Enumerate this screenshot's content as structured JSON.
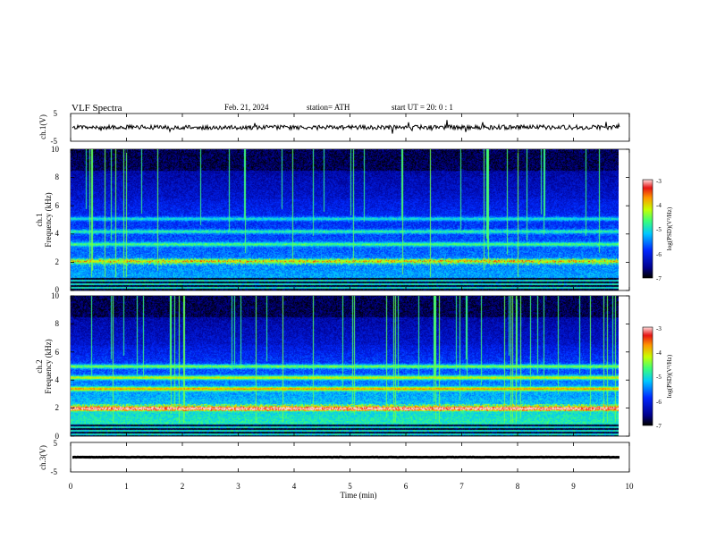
{
  "header": {
    "title": "VLF  Spectra",
    "date": "Feb. 21, 2024",
    "station": "station= ATH",
    "start": "start  UT  =    20: 0   : 1"
  },
  "chart_data": [
    {
      "type": "line",
      "name": "ch1-waveform",
      "ylabel": "ch.1(V)",
      "ylim": [
        -5,
        5
      ],
      "yticks": [
        "5",
        "-5"
      ],
      "xlim": [
        0,
        10
      ],
      "duration_min": 9.83,
      "baseline_v": 0.0,
      "noise_amplitude_v": 0.8
    },
    {
      "type": "heatmap",
      "name": "ch1-spectrogram",
      "ylabel": "ch.1\nFrequency  (kHz)",
      "ylim": [
        0,
        10
      ],
      "yticks": [
        "0",
        "2",
        "4",
        "6",
        "8",
        "10"
      ],
      "xlim": [
        0,
        10
      ],
      "duration_min": 9.83,
      "colorbar": {
        "label": "log(PSD)(V²/Hz)",
        "range": [
          -7,
          -3
        ],
        "ticks": [
          "-3",
          "-4",
          "-5",
          "-6",
          "-7"
        ]
      },
      "spectral_bands": [
        {
          "freq_khz": 2.1,
          "level": 0.55
        },
        {
          "freq_khz": 3.3,
          "level": 0.42
        },
        {
          "freq_khz": 4.2,
          "level": 0.4
        },
        {
          "freq_khz": 5.1,
          "level": 0.38
        }
      ]
    },
    {
      "type": "heatmap",
      "name": "ch2-spectrogram",
      "ylabel": "ch.2\nFrequency  (kHz)",
      "ylim": [
        0,
        10
      ],
      "yticks": [
        "0",
        "2",
        "4",
        "6",
        "8",
        "10"
      ],
      "xlim": [
        0,
        10
      ],
      "duration_min": 9.83,
      "colorbar": {
        "label": "log(PSD)(V²/Hz)",
        "range": [
          -7,
          -3
        ],
        "ticks": [
          "-3",
          "-4",
          "-5",
          "-6",
          "-7"
        ]
      },
      "spectral_bands": [
        {
          "freq_khz": 2.0,
          "level": 0.85
        },
        {
          "freq_khz": 3.4,
          "level": 0.7
        },
        {
          "freq_khz": 4.2,
          "level": 0.62
        },
        {
          "freq_khz": 5.0,
          "level": 0.55
        }
      ]
    },
    {
      "type": "line",
      "name": "ch3-waveform",
      "ylabel": "ch.3(V)",
      "ylim": [
        -5,
        5
      ],
      "yticks": [
        "5",
        "-5"
      ],
      "xlim": [
        0,
        10
      ],
      "duration_min": 9.83,
      "baseline_v": 0.0,
      "noise_amplitude_v": 0.05
    }
  ],
  "xaxis": {
    "label": "Time  (min)",
    "ticks": [
      "0",
      "1",
      "2",
      "3",
      "4",
      "5",
      "6",
      "7",
      "8",
      "9",
      "10"
    ]
  }
}
